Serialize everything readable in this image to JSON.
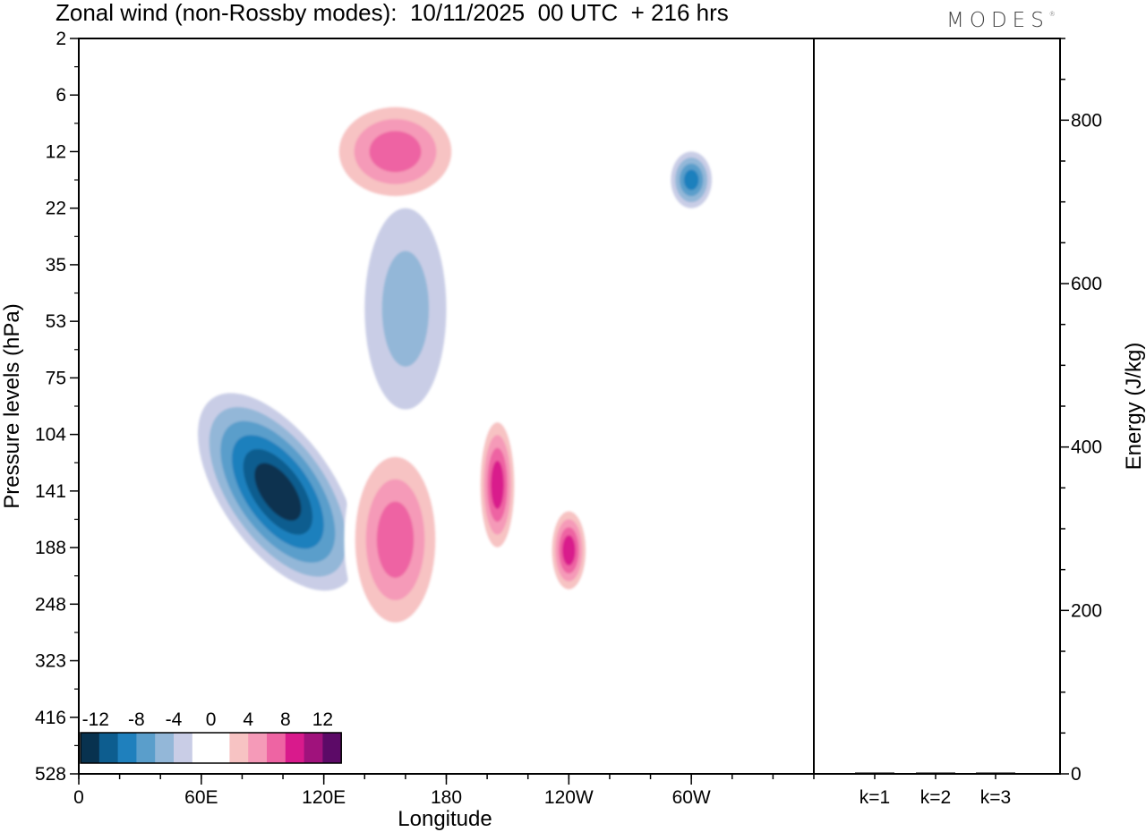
{
  "header": {
    "title": "Zonal wind (non-Rossby modes):  10/11/2025  00 UTC  + 216 hrs",
    "logo": "MODES"
  },
  "chart_data": [
    {
      "type": "heatmap",
      "title": "Zonal wind (non-Rossby modes):  10/11/2025  00 UTC  + 216 hrs",
      "xlabel": "Longitude",
      "ylabel": "Pressure levels (hPa)",
      "x_ticks": [
        "0",
        "60E",
        "120E",
        "180",
        "120W",
        "60W"
      ],
      "x_tick_degrees": [
        0,
        60,
        120,
        180,
        240,
        300
      ],
      "xlim": [
        0,
        360
      ],
      "y_ticks": [
        "2",
        "6",
        "12",
        "22",
        "35",
        "53",
        "75",
        "104",
        "141",
        "188",
        "248",
        "323",
        "416",
        "528"
      ],
      "colorbar": {
        "labels": [
          "-12",
          "-8",
          "-4",
          "0",
          "4",
          "8",
          "12"
        ],
        "levels": [
          -14,
          -12,
          -10,
          -8,
          -6,
          -4,
          -2,
          2,
          4,
          6,
          8,
          10,
          12,
          14
        ],
        "colors": [
          "#08324f",
          "#0d5d8f",
          "#1f80bd",
          "#5a9ecb",
          "#93b7d8",
          "#c9cde6",
          "#ffffff",
          "#ffffff",
          "#f7c3c3",
          "#f59ab8",
          "#ee64a3",
          "#d91a8c",
          "#a0127c",
          "#5c0a67"
        ]
      },
      "features": [
        {
          "sign": "negative",
          "lon_range": [
            70,
            125
          ],
          "p_range": [
            75,
            250
          ],
          "peak": -12
        },
        {
          "sign": "positive",
          "lon_range": [
            130,
            180
          ],
          "p_range": [
            104,
            300
          ],
          "peak": 8
        },
        {
          "sign": "positive",
          "lon_range": [
            195,
            215
          ],
          "p_range": [
            90,
            200
          ],
          "peak": 10
        },
        {
          "sign": "positive",
          "lon_range": [
            230,
            250
          ],
          "p_range": [
            150,
            240
          ],
          "peak": 10
        },
        {
          "sign": "positive",
          "lon_range": [
            120,
            190
          ],
          "p_range": [
            6,
            22
          ],
          "peak": 8
        },
        {
          "sign": "negative",
          "lon_range": [
            140,
            180
          ],
          "p_range": [
            22,
            90
          ],
          "peak": -4
        },
        {
          "sign": "negative",
          "lon_range": [
            290,
            310
          ],
          "p_range": [
            12,
            22
          ],
          "peak": -8
        }
      ]
    },
    {
      "type": "bar",
      "categories": [
        "k=1",
        "k=2",
        "k=3"
      ],
      "values": [
        1,
        0.5,
        0.3
      ],
      "ylabel": "Energy (J/kg)",
      "ylim": [
        0,
        900
      ],
      "y_ticks": [
        0,
        200,
        400,
        600,
        800
      ]
    }
  ]
}
